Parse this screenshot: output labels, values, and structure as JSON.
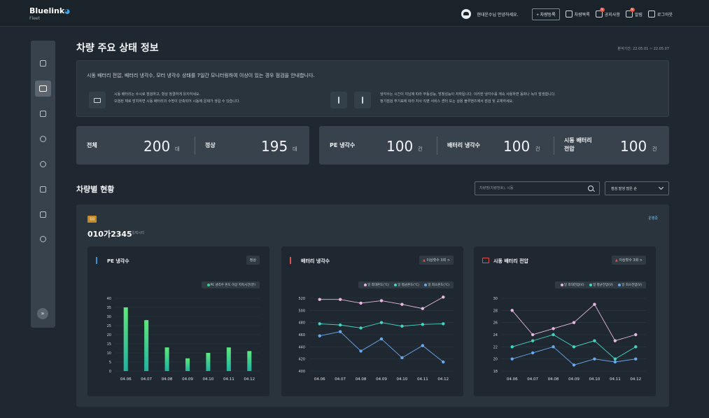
{
  "app": {
    "brand": "Bluelink",
    "sub": "Fleet"
  },
  "topbar": {
    "greeting": "현대운수님 안녕하세요.",
    "register": "+ 차량등록",
    "nav": [
      {
        "label": "차량목록",
        "icon": "list-icon"
      },
      {
        "label": "공지사항",
        "icon": "megaphone-icon",
        "badge": "N"
      },
      {
        "label": "알림",
        "icon": "bell-icon",
        "badge": "N"
      },
      {
        "label": "로그아웃",
        "icon": "logout-icon"
      }
    ]
  },
  "sidebar": {
    "items": [
      {
        "name": "dashboard",
        "icon": "grid-icon"
      },
      {
        "name": "vehicle",
        "icon": "car-icon",
        "active": true
      },
      {
        "name": "stats",
        "icon": "building-icon"
      },
      {
        "name": "gauge",
        "icon": "gauge-icon"
      },
      {
        "name": "location",
        "icon": "pin-icon"
      },
      {
        "name": "report",
        "icon": "document-icon"
      },
      {
        "name": "download",
        "icon": "download-icon"
      },
      {
        "name": "settings",
        "icon": "settings-icon"
      }
    ],
    "expand": "»"
  },
  "page": {
    "title": "차량 주요 상태 정보",
    "period": "분석기간: 22.05.01 ~ 22.05.07"
  },
  "info": {
    "main": "시동 배터리 전압, 배터리 냉각수, 모터 냉각수 상태를 7일간 모니터링하여 이상이 있는 경우 점검을 안내합니다.",
    "left_line1": "시동 배터리는 수시로 점검하고, 항상 청결하게 유지하세요.",
    "left_line2": "오염된 채로 방치하면 시동 배터리의 수명이 단축되어 시동에 문제가 생길 수 있습니다.",
    "right_line1": "냉각수는 시간이 지남에 따라 부동성능, 방청성능이 저하됩니다. 이러한 냉각수를 계속 사용하면 동파나 녹이 발생합니다.",
    "right_line2": "정기점검 주기표에 따라 자사 직영 서비스 센터 또는 상용 블루핸즈에서 점검 및 교체하세요."
  },
  "stats": {
    "total_label": "전체",
    "total_value": "200",
    "total_unit": "대",
    "normal_label": "정상",
    "normal_value": "195",
    "normal_unit": "대",
    "pe_label": "PE 냉각수",
    "pe_value": "100",
    "pe_unit": "건",
    "bat_label": "배터리 냉각수",
    "bat_value": "100",
    "bat_unit": "건",
    "start_label_1": "시동 배터리",
    "start_label_2": "전압",
    "start_value": "100",
    "start_unit": "건"
  },
  "vehicles": {
    "title": "차량별 현황",
    "search_placeholder": "차량명(차량번호), 시동",
    "sort": "점검 발생 많은 순",
    "tag": "점검",
    "plate": "010가2345",
    "plate_sub": "일렉시티",
    "driving": "운행중"
  },
  "charts_meta": {
    "pe": {
      "title": "PE 냉각수",
      "badge": "정상",
      "legend": [
        "PE 냉각수 온도 이상 지속시간(분)"
      ]
    },
    "bat": {
      "title": "배터리 냉각수",
      "badge": "이상횟수 3회 >",
      "legend": [
        "일 최대온도(℃)",
        "일 평균온도(℃)",
        "일 최소온도(℃)"
      ]
    },
    "start": {
      "title": "시동 배터리 전압",
      "badge": "이상횟수 3회 >",
      "legend": [
        "일 최대전압(V)",
        "일 평균전압(V)",
        "일 최소전압(V)"
      ]
    }
  },
  "chart_data": [
    {
      "type": "bar",
      "categories": [
        "04.06",
        "04.07",
        "04.08",
        "04.09",
        "04.10",
        "04.11",
        "04.12"
      ],
      "series": [
        {
          "name": "PE 냉각수 온도 이상 지속시간(분)",
          "values": [
            35,
            28,
            13,
            7,
            10,
            13,
            11
          ]
        }
      ],
      "ylim": [
        0,
        40
      ],
      "yticks": [
        0,
        5,
        10,
        15,
        20,
        25,
        30,
        35,
        40
      ],
      "colors": [
        "#37d48c"
      ]
    },
    {
      "type": "line",
      "categories": [
        "04.06",
        "04.07",
        "04.08",
        "04.09",
        "04.10",
        "04.11",
        "04.12"
      ],
      "series": [
        {
          "name": "일 최대온도(℃)",
          "values": [
            518,
            518,
            512,
            516,
            510,
            503,
            522
          ]
        },
        {
          "name": "일 평균온도(℃)",
          "values": [
            478,
            476,
            471,
            480,
            474,
            477,
            478
          ]
        },
        {
          "name": "일 최소온도(℃)",
          "values": [
            458,
            465,
            433,
            453,
            422,
            442,
            415
          ]
        }
      ],
      "ylim": [
        400,
        520
      ],
      "yticks": [
        400,
        420,
        440,
        460,
        480,
        500,
        520
      ],
      "colors": [
        "#e8b8e0",
        "#3fd6c4",
        "#6aa8ee"
      ]
    },
    {
      "type": "line",
      "categories": [
        "04.06",
        "04.07",
        "04.08",
        "04.09",
        "04.10",
        "04.11",
        "04.12"
      ],
      "series": [
        {
          "name": "일 최대전압(V)",
          "values": [
            28,
            24,
            25,
            26,
            29,
            23,
            24
          ]
        },
        {
          "name": "일 평균전압(V)",
          "values": [
            22,
            23,
            24,
            22,
            23,
            20,
            22
          ]
        },
        {
          "name": "일 최소전압(V)",
          "values": [
            20,
            21,
            22,
            19,
            20,
            19.5,
            20
          ]
        }
      ],
      "ylim": [
        18,
        30
      ],
      "yticks": [
        18,
        20,
        22,
        24,
        26,
        28,
        30
      ],
      "colors": [
        "#e8b8e0",
        "#3fd6c4",
        "#6aa8ee"
      ]
    }
  ]
}
